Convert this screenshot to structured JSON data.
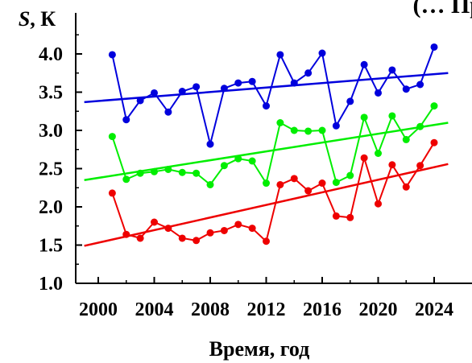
{
  "chart_data": {
    "type": "line",
    "title": "(… Пр",
    "ylabel": "S, К",
    "ylabel_symbol": "S",
    "ylabel_unit": ", К",
    "xlabel": "Время, год",
    "xlim": [
      1999,
      2025
    ],
    "ylim": [
      1.0,
      4.3
    ],
    "xticks": [
      2000,
      2004,
      2008,
      2012,
      2016,
      2020,
      2024
    ],
    "xtick_labels": [
      "2000",
      "2004",
      "2008",
      "2012",
      "2016",
      "2020",
      "2024"
    ],
    "yticks": [
      1.0,
      1.5,
      2.0,
      2.5,
      3.0,
      3.5,
      4.0
    ],
    "ytick_labels": [
      "1.0",
      "1.5",
      "2.0",
      "2.5",
      "3.0",
      "3.5",
      "4.0"
    ],
    "grid": false,
    "legend": "none",
    "x": [
      2001,
      2002,
      2003,
      2004,
      2005,
      2006,
      2007,
      2008,
      2009,
      2010,
      2011,
      2012,
      2013,
      2014,
      2015,
      2016,
      2017,
      2018,
      2019,
      2020,
      2021,
      2022,
      2023,
      2024
    ],
    "series": [
      {
        "color": "#0000dd",
        "values": [
          3.99,
          3.14,
          3.39,
          3.49,
          3.24,
          3.51,
          3.57,
          2.82,
          3.55,
          3.62,
          3.64,
          3.32,
          3.99,
          3.62,
          3.75,
          4.01,
          3.06,
          3.38,
          3.86,
          3.49,
          3.79,
          3.54,
          3.6,
          4.09
        ],
        "trend": {
          "x": [
            1999,
            2025
          ],
          "y": [
            3.37,
            3.75
          ]
        }
      },
      {
        "color": "#00ee00",
        "values": [
          2.92,
          2.36,
          2.44,
          2.46,
          2.49,
          2.45,
          2.44,
          2.29,
          2.54,
          2.63,
          2.6,
          2.31,
          3.1,
          3.0,
          2.99,
          3.0,
          2.32,
          2.41,
          3.17,
          2.7,
          3.19,
          2.88,
          3.05,
          3.32
        ],
        "trend": {
          "x": [
            1999,
            2025
          ],
          "y": [
            2.35,
            3.1
          ]
        }
      },
      {
        "color": "#ee0000",
        "values": [
          2.18,
          1.64,
          1.59,
          1.8,
          1.72,
          1.59,
          1.56,
          1.66,
          1.69,
          1.77,
          1.72,
          1.55,
          2.29,
          2.37,
          2.21,
          2.31,
          1.88,
          1.86,
          2.64,
          2.04,
          2.55,
          2.26,
          2.54,
          2.84
        ],
        "trend": {
          "x": [
            1999,
            2025
          ],
          "y": [
            1.49,
            2.56
          ]
        }
      }
    ]
  }
}
